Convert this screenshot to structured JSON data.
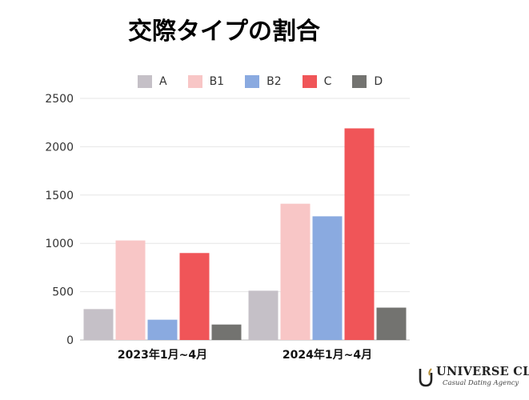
{
  "chart_data": {
    "type": "bar",
    "title": "交際タイプの割合",
    "categories": [
      "2023年1月~4月",
      "2024年1月~4月"
    ],
    "series": [
      {
        "name": "A",
        "color": "#c5c0c7",
        "values": [
          320,
          510
        ]
      },
      {
        "name": "B1",
        "color": "#f8c6c6",
        "values": [
          1030,
          1410
        ]
      },
      {
        "name": "B2",
        "color": "#8aaae0",
        "values": [
          210,
          1280
        ]
      },
      {
        "name": "C",
        "color": "#f05558",
        "values": [
          900,
          2190
        ]
      },
      {
        "name": "D",
        "color": "#737370",
        "values": [
          160,
          335
        ]
      }
    ],
    "yticks": [
      0,
      500,
      1000,
      1500,
      2000,
      2500
    ],
    "ylim": [
      0,
      2500
    ],
    "grid": true,
    "legend_position": "top"
  },
  "brand": {
    "name": "UNIVERSE CLUB",
    "tagline": "Casual Dating Agency"
  }
}
